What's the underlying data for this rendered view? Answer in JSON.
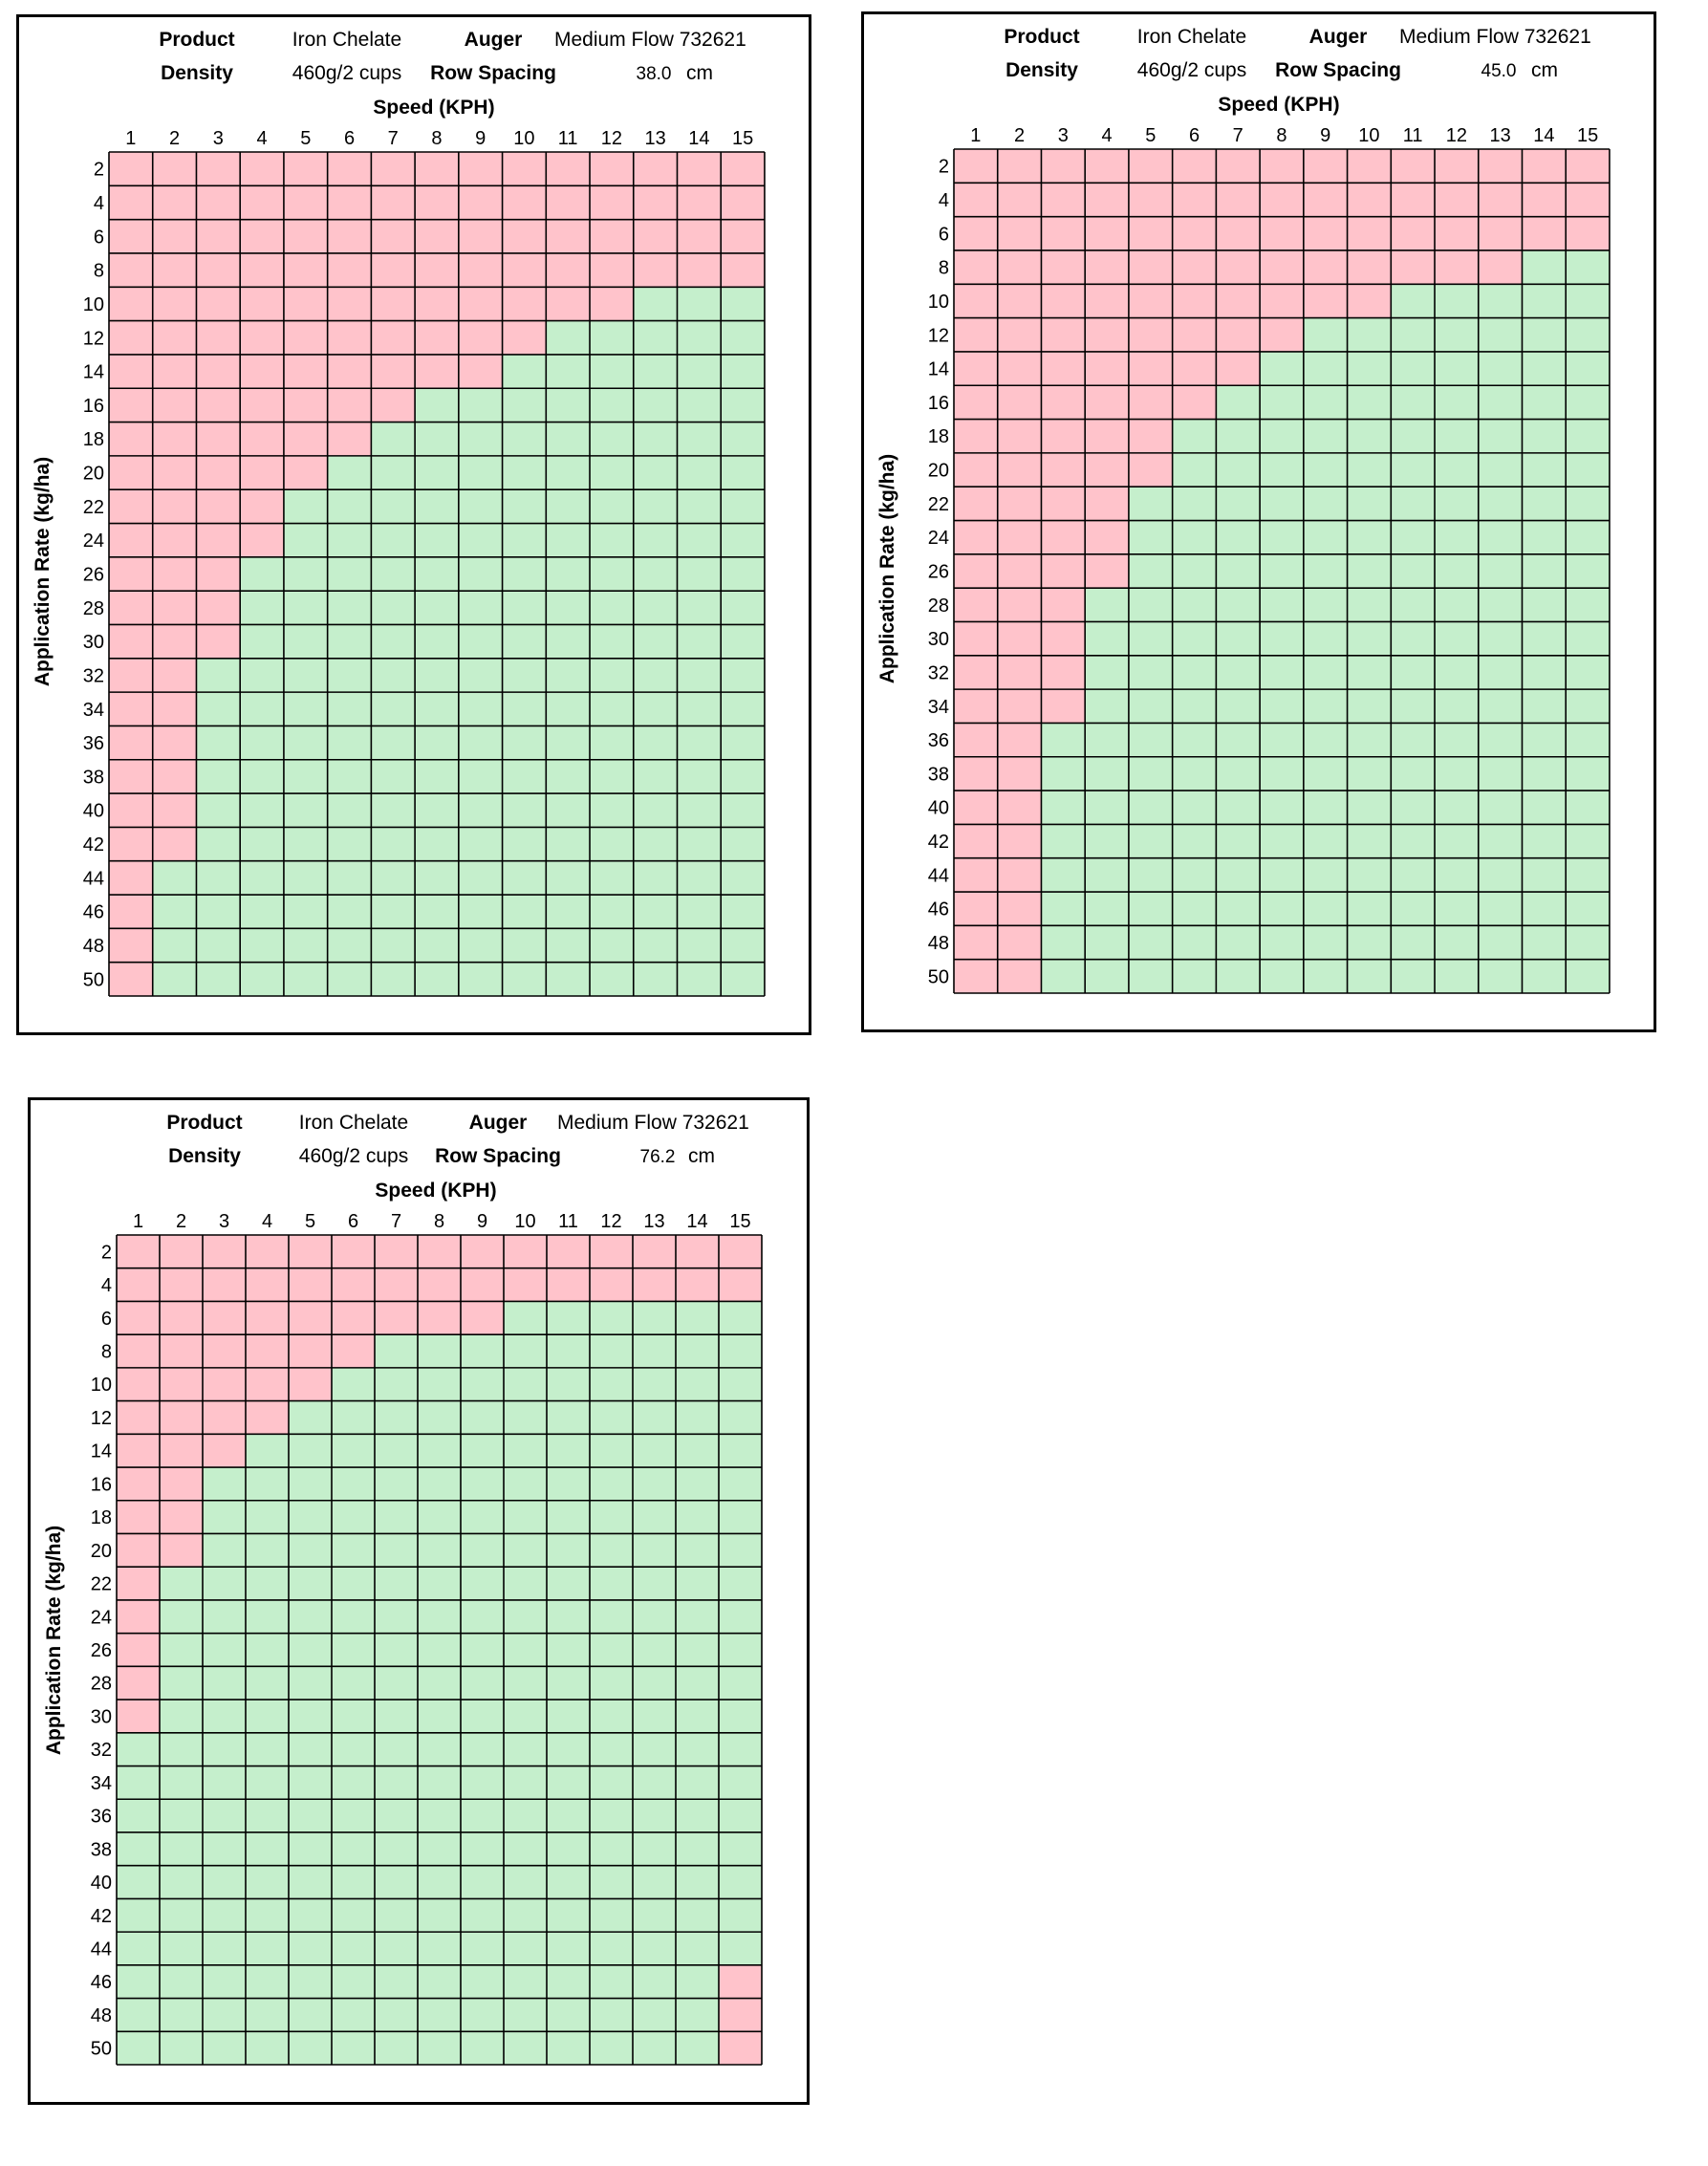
{
  "chart_data": [
    {
      "type": "heatmap",
      "header": {
        "product_label": "Product",
        "product_value": "Iron Chelate",
        "auger_label": "Auger",
        "auger_value": "Medium Flow 732621",
        "density_label": "Density",
        "density_value": "460g/2 cups",
        "row_spacing_label": "Row Spacing",
        "row_spacing_value": "38.0",
        "row_spacing_unit": "cm"
      },
      "xlabel": "Speed (KPH)",
      "ylabel": "Application Rate (kg/ha)",
      "x": [
        1,
        2,
        3,
        4,
        5,
        6,
        7,
        8,
        9,
        10,
        11,
        12,
        13,
        14,
        15
      ],
      "y": [
        2,
        4,
        6,
        8,
        10,
        12,
        14,
        16,
        18,
        20,
        22,
        24,
        26,
        28,
        30,
        32,
        34,
        36,
        38,
        40,
        42,
        44,
        46,
        48,
        50
      ],
      "colors": {
        "out_of_range": "#ffc3cb",
        "in_range": "#c5efcc"
      },
      "in_range_min_rate_by_speed": [
        null,
        44,
        32,
        26,
        22,
        20,
        18,
        16,
        16,
        14,
        12,
        12,
        10,
        10,
        10
      ],
      "in_range_max_rate_by_speed": [
        null,
        50,
        50,
        50,
        50,
        50,
        50,
        50,
        50,
        50,
        50,
        50,
        50,
        50,
        50
      ]
    },
    {
      "type": "heatmap",
      "header": {
        "product_label": "Product",
        "product_value": "Iron Chelate",
        "auger_label": "Auger",
        "auger_value": "Medium Flow 732621",
        "density_label": "Density",
        "density_value": "460g/2 cups",
        "row_spacing_label": "Row Spacing",
        "row_spacing_value": "45.0",
        "row_spacing_unit": "cm"
      },
      "xlabel": "Speed (KPH)",
      "ylabel": "Application Rate (kg/ha)",
      "x": [
        1,
        2,
        3,
        4,
        5,
        6,
        7,
        8,
        9,
        10,
        11,
        12,
        13,
        14,
        15
      ],
      "y": [
        2,
        4,
        6,
        8,
        10,
        12,
        14,
        16,
        18,
        20,
        22,
        24,
        26,
        28,
        30,
        32,
        34,
        36,
        38,
        40,
        42,
        44,
        46,
        48,
        50
      ],
      "colors": {
        "out_of_range": "#ffc3cb",
        "in_range": "#c5efcc"
      },
      "in_range_min_rate_by_speed": [
        null,
        null,
        36,
        28,
        22,
        18,
        16,
        14,
        12,
        12,
        10,
        10,
        10,
        8,
        8
      ],
      "in_range_max_rate_by_speed": [
        null,
        null,
        50,
        50,
        50,
        50,
        50,
        50,
        50,
        50,
        50,
        50,
        50,
        50,
        50
      ]
    },
    {
      "type": "heatmap",
      "header": {
        "product_label": "Product",
        "product_value": "Iron Chelate",
        "auger_label": "Auger",
        "auger_value": "Medium Flow 732621",
        "density_label": "Density",
        "density_value": "460g/2 cups",
        "row_spacing_label": "Row Spacing",
        "row_spacing_value": "76.2",
        "row_spacing_unit": "cm"
      },
      "xlabel": "Speed (KPH)",
      "ylabel": "Application Rate (kg/ha)",
      "x": [
        1,
        2,
        3,
        4,
        5,
        6,
        7,
        8,
        9,
        10,
        11,
        12,
        13,
        14,
        15
      ],
      "y": [
        2,
        4,
        6,
        8,
        10,
        12,
        14,
        16,
        18,
        20,
        22,
        24,
        26,
        28,
        30,
        32,
        34,
        36,
        38,
        40,
        42,
        44,
        46,
        48,
        50
      ],
      "colors": {
        "out_of_range": "#ffc3cb",
        "in_range": "#c5efcc"
      },
      "in_range_min_rate_by_speed": [
        32,
        22,
        16,
        14,
        12,
        10,
        8,
        8,
        8,
        6,
        6,
        6,
        6,
        6,
        6
      ],
      "in_range_max_rate_by_speed": [
        50,
        50,
        50,
        50,
        50,
        50,
        50,
        50,
        50,
        50,
        50,
        50,
        50,
        50,
        44
      ]
    }
  ]
}
